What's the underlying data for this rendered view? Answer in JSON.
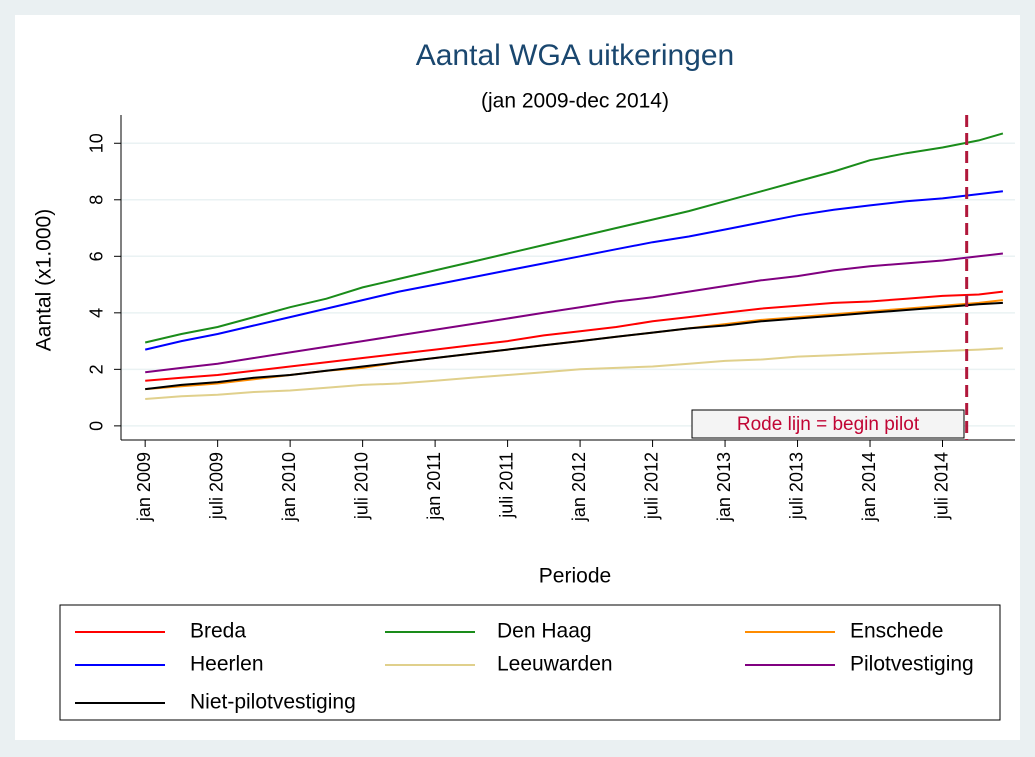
{
  "chart_data": {
    "type": "line",
    "title": "Aantal WGA uitkeringen",
    "subtitle": "(jan 2009-dec 2014)",
    "xlabel": "Periode",
    "ylabel": "Aantal (x1.000)",
    "x": [
      "2009-01",
      "2009-04",
      "2009-07",
      "2009-10",
      "2010-01",
      "2010-04",
      "2010-07",
      "2010-10",
      "2011-01",
      "2011-04",
      "2011-07",
      "2011-10",
      "2012-01",
      "2012-04",
      "2012-07",
      "2012-10",
      "2013-01",
      "2013-04",
      "2013-07",
      "2013-10",
      "2014-01",
      "2014-04",
      "2014-07",
      "2014-10",
      "2014-12"
    ],
    "series": [
      {
        "name": "Breda",
        "color": "#ff0000",
        "values": [
          1.6,
          1.7,
          1.8,
          1.95,
          2.1,
          2.25,
          2.4,
          2.55,
          2.7,
          2.85,
          3.0,
          3.2,
          3.35,
          3.5,
          3.7,
          3.85,
          4.0,
          4.15,
          4.25,
          4.35,
          4.4,
          4.5,
          4.6,
          4.65,
          4.75
        ]
      },
      {
        "name": "Den Haag",
        "color": "#1a8c1a",
        "values": [
          2.95,
          3.25,
          3.5,
          3.85,
          4.2,
          4.5,
          4.9,
          5.2,
          5.5,
          5.8,
          6.1,
          6.4,
          6.7,
          7.0,
          7.3,
          7.6,
          7.95,
          8.3,
          8.65,
          9.0,
          9.4,
          9.65,
          9.85,
          10.1,
          10.35
        ]
      },
      {
        "name": "Enschede",
        "color": "#ff8c00",
        "values": [
          1.3,
          1.4,
          1.5,
          1.65,
          1.8,
          1.95,
          2.05,
          2.25,
          2.4,
          2.55,
          2.7,
          2.85,
          3.0,
          3.15,
          3.3,
          3.45,
          3.6,
          3.75,
          3.85,
          3.95,
          4.05,
          4.15,
          4.25,
          4.35,
          4.45
        ]
      },
      {
        "name": "Heerlen",
        "color": "#0000ff",
        "values": [
          2.7,
          3.0,
          3.25,
          3.55,
          3.85,
          4.15,
          4.45,
          4.75,
          5.0,
          5.25,
          5.5,
          5.75,
          6.0,
          6.25,
          6.5,
          6.7,
          6.95,
          7.2,
          7.45,
          7.65,
          7.8,
          7.95,
          8.05,
          8.2,
          8.3
        ]
      },
      {
        "name": "Leeuwarden",
        "color": "#e0d08c",
        "values": [
          0.95,
          1.05,
          1.1,
          1.2,
          1.25,
          1.35,
          1.45,
          1.5,
          1.6,
          1.7,
          1.8,
          1.9,
          2.0,
          2.05,
          2.1,
          2.2,
          2.3,
          2.35,
          2.45,
          2.5,
          2.55,
          2.6,
          2.65,
          2.7,
          2.75
        ]
      },
      {
        "name": "Pilotvestiging",
        "color": "#800080",
        "values": [
          1.9,
          2.05,
          2.2,
          2.4,
          2.6,
          2.8,
          3.0,
          3.2,
          3.4,
          3.6,
          3.8,
          4.0,
          4.2,
          4.4,
          4.55,
          4.75,
          4.95,
          5.15,
          5.3,
          5.5,
          5.65,
          5.75,
          5.85,
          6.0,
          6.1
        ]
      },
      {
        "name": "Niet-pilotvestiging",
        "color": "#000000",
        "values": [
          1.3,
          1.45,
          1.55,
          1.7,
          1.8,
          1.95,
          2.1,
          2.25,
          2.4,
          2.55,
          2.7,
          2.85,
          3.0,
          3.15,
          3.3,
          3.45,
          3.55,
          3.7,
          3.8,
          3.9,
          4.0,
          4.1,
          4.2,
          4.3,
          4.35
        ]
      }
    ],
    "xlim": [
      "2008-11",
      "2015-01"
    ],
    "xticks": [
      {
        "value": "2009-01",
        "label": "jan 2009"
      },
      {
        "value": "2009-07",
        "label": "juli 2009"
      },
      {
        "value": "2010-01",
        "label": "jan 2010"
      },
      {
        "value": "2010-07",
        "label": "juli 2010"
      },
      {
        "value": "2011-01",
        "label": "jan 2011"
      },
      {
        "value": "2011-07",
        "label": "juli 2011"
      },
      {
        "value": "2012-01",
        "label": "jan 2012"
      },
      {
        "value": "2012-07",
        "label": "juli 2012"
      },
      {
        "value": "2013-01",
        "label": "jan 2013"
      },
      {
        "value": "2013-07",
        "label": "juli 2013"
      },
      {
        "value": "2014-01",
        "label": "jan 2014"
      },
      {
        "value": "2014-07",
        "label": "juli 2014"
      }
    ],
    "ylim": [
      -0.5,
      11
    ],
    "yticks": [
      0,
      2,
      4,
      6,
      8,
      10
    ],
    "grid": true,
    "legend": "bottom",
    "vline": {
      "x": "2014-09",
      "color": "#b0173b"
    },
    "annotation": "Rode lijn = begin pilot"
  }
}
